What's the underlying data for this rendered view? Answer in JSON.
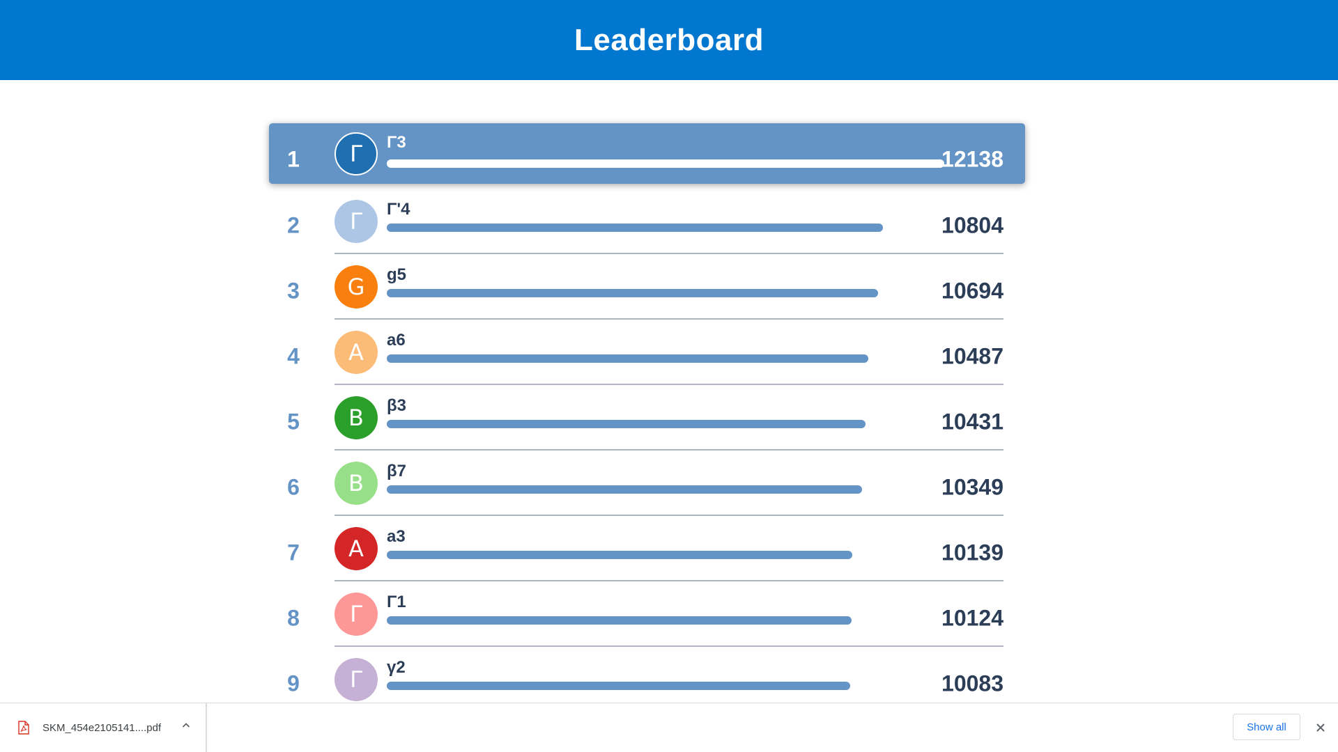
{
  "header": {
    "title": "Leaderboard"
  },
  "colors": {
    "header_bg": "#0277cf",
    "accent": "#6493c5",
    "text_dark": "#2c3e57"
  },
  "leaderboard": [
    {
      "rank": "1",
      "initial": "Γ",
      "name": "Γ3",
      "score": "12138",
      "avatar_color": "#1f6fb1",
      "progress": 1.0
    },
    {
      "rank": "2",
      "initial": "Γ",
      "name": "Γ'4",
      "score": "10804",
      "avatar_color": "#adc6e6",
      "progress": 0.89
    },
    {
      "rank": "3",
      "initial": "G",
      "name": "g5",
      "score": "10694",
      "avatar_color": "#f97f0e",
      "progress": 0.881
    },
    {
      "rank": "4",
      "initial": "A",
      "name": "a6",
      "score": "10487",
      "avatar_color": "#fdbb78",
      "progress": 0.864
    },
    {
      "rank": "5",
      "initial": "B",
      "name": "β3",
      "score": "10431",
      "avatar_color": "#2a9f2a",
      "progress": 0.859
    },
    {
      "rank": "6",
      "initial": "B",
      "name": "β7",
      "score": "10349",
      "avatar_color": "#98df89",
      "progress": 0.853
    },
    {
      "rank": "7",
      "initial": "A",
      "name": "a3",
      "score": "10139",
      "avatar_color": "#d42627",
      "progress": 0.835
    },
    {
      "rank": "8",
      "initial": "Γ",
      "name": "Γ1",
      "score": "10124",
      "avatar_color": "#fe9897",
      "progress": 0.834
    },
    {
      "rank": "9",
      "initial": "Γ",
      "name": "γ2",
      "score": "10083",
      "avatar_color": "#c5b0d6",
      "progress": 0.831
    }
  ],
  "download_bar": {
    "file_name": "SKM_454e2105141....pdf",
    "file_icon": "pdf-file-icon",
    "show_all_label": "Show all",
    "close_icon": "close-icon"
  }
}
